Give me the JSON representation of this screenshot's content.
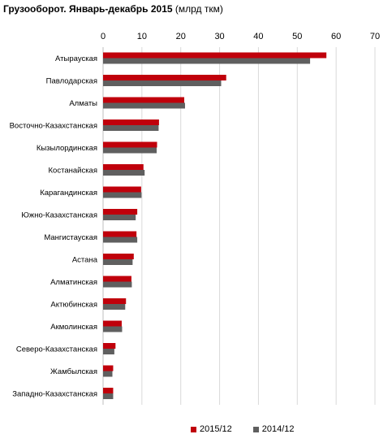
{
  "header": {
    "title": "Грузооборот. Январь-декабрь  2015",
    "unit": "(млрд ткм)"
  },
  "colors": {
    "series_2015": "#c0000b",
    "series_2014": "#5f5f5f",
    "grid": "#d9d9d9"
  },
  "chart_data": {
    "type": "bar",
    "orientation": "horizontal",
    "title": "Грузооборот. Январь-декабрь  2015 (млрд ткм)",
    "xlim": [
      0,
      70
    ],
    "xticks": [
      0,
      10,
      20,
      30,
      40,
      50,
      60,
      70
    ],
    "grid": "vertical",
    "legend_position": "bottom",
    "categories": [
      "Атырауская",
      "Павлодарская",
      "Алматы",
      "Восточно-Казахстанская",
      "Кызылординская",
      "Костанайская",
      "Карагандинская",
      "Южно-Казахстанская",
      "Мангистауская",
      "Астана",
      "Алматинская",
      "Актюбинская",
      "Акмолинская",
      "Северо-Казахстанская",
      "Жамбылская",
      "Западно-Казахстанская"
    ],
    "series": [
      {
        "name": "2015/12",
        "values": [
          57.5,
          31.7,
          20.9,
          14.4,
          13.9,
          10.4,
          9.8,
          8.8,
          8.6,
          7.9,
          7.3,
          5.9,
          4.8,
          3.2,
          2.6,
          2.6
        ]
      },
      {
        "name": "2014/12",
        "values": [
          53.3,
          30.4,
          21.1,
          14.3,
          13.8,
          10.7,
          9.9,
          8.4,
          8.8,
          7.6,
          7.4,
          5.7,
          4.9,
          2.9,
          2.4,
          2.6
        ]
      }
    ]
  }
}
